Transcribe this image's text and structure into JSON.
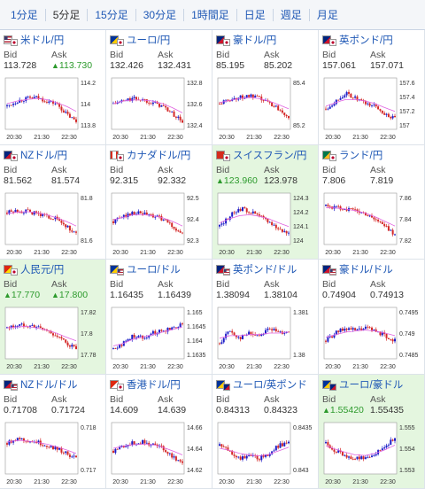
{
  "tabs": [
    {
      "label": "1分足",
      "active": false
    },
    {
      "label": "5分足",
      "active": true
    },
    {
      "label": "15分足",
      "active": false
    },
    {
      "label": "30分足",
      "active": false
    },
    {
      "label": "1時間足",
      "active": false
    },
    {
      "label": "日足",
      "active": false
    },
    {
      "label": "週足",
      "active": false
    },
    {
      "label": "月足",
      "active": false
    }
  ],
  "colors": {
    "up": "#1e1ec8",
    "down": "#d42828",
    "ma": "#e060e0",
    "link": "#1f58b5",
    "highlight": "#e4f6df",
    "bid_up": "#2c9a2c"
  },
  "panels": [
    {
      "pair": "米ドル/円",
      "flags": [
        "us-flag",
        "jp-flag"
      ],
      "bid_label": "Bid",
      "ask_label": "Ask",
      "bid": "113.728",
      "ask": "113.730",
      "bid_up": false,
      "ask_up": true,
      "highlight": false,
      "chart_data": {
        "type": "candlestick",
        "x_ticks": [
          "20:30",
          "21:30",
          "22:30"
        ],
        "y_ticks": [
          "114.2",
          "114",
          "113.8"
        ],
        "trend": [
          0.45,
          0.55,
          0.6,
          0.62,
          0.55,
          0.5,
          0.3,
          0.15
        ],
        "ma": [
          0.5,
          0.55,
          0.58,
          0.6,
          0.58,
          0.52,
          0.45,
          0.35
        ]
      }
    },
    {
      "pair": "ユーロ/円",
      "flags": [
        "eu-flag",
        "jp-flag"
      ],
      "bid_label": "Bid",
      "ask_label": "Ask",
      "bid": "132.426",
      "ask": "132.431",
      "bid_up": false,
      "ask_up": false,
      "highlight": false,
      "chart_data": {
        "type": "candlestick",
        "x_ticks": [
          "20:30",
          "21:30",
          "22:30"
        ],
        "y_ticks": [
          "132.8",
          "132.6",
          "132.4"
        ],
        "trend": [
          0.5,
          0.55,
          0.6,
          0.58,
          0.52,
          0.45,
          0.3,
          0.15
        ],
        "ma": [
          0.5,
          0.55,
          0.57,
          0.57,
          0.55,
          0.5,
          0.42,
          0.32
        ]
      }
    },
    {
      "pair": "豪ドル/円",
      "flags": [
        "au-flag",
        "jp-flag"
      ],
      "bid_label": "Bid",
      "ask_label": "Ask",
      "bid": "85.195",
      "ask": "85.202",
      "bid_up": false,
      "ask_up": false,
      "highlight": false,
      "chart_data": {
        "type": "candlestick",
        "x_ticks": [
          "20:30",
          "21:30",
          "22:30"
        ],
        "y_ticks": [
          "85.4",
          "85.2"
        ],
        "trend": [
          0.5,
          0.58,
          0.62,
          0.65,
          0.6,
          0.52,
          0.4,
          0.25
        ],
        "ma": [
          0.52,
          0.56,
          0.6,
          0.62,
          0.6,
          0.55,
          0.48,
          0.4
        ]
      }
    },
    {
      "pair": "英ポンド/円",
      "flags": [
        "gb-flag",
        "jp-flag"
      ],
      "bid_label": "Bid",
      "ask_label": "Ask",
      "bid": "157.061",
      "ask": "157.071",
      "bid_up": false,
      "ask_up": false,
      "highlight": false,
      "chart_data": {
        "type": "candlestick",
        "x_ticks": [
          "20:30",
          "21:30",
          "22:30"
        ],
        "y_ticks": [
          "157.6",
          "157.4",
          "157.2",
          "157"
        ],
        "trend": [
          0.4,
          0.55,
          0.7,
          0.6,
          0.5,
          0.45,
          0.3,
          0.2
        ],
        "ma": [
          0.45,
          0.52,
          0.58,
          0.58,
          0.55,
          0.5,
          0.42,
          0.35
        ]
      }
    },
    {
      "pair": "NZドル/円",
      "flags": [
        "nz-flag",
        "jp-flag"
      ],
      "bid_label": "Bid",
      "ask_label": "Ask",
      "bid": "81.562",
      "ask": "81.574",
      "bid_up": false,
      "ask_up": false,
      "highlight": false,
      "chart_data": {
        "type": "candlestick",
        "x_ticks": [
          "20:30",
          "21:30",
          "22:30"
        ],
        "y_ticks": [
          "81.8",
          "81.6"
        ],
        "trend": [
          0.62,
          0.66,
          0.64,
          0.6,
          0.55,
          0.5,
          0.35,
          0.2
        ],
        "ma": [
          0.6,
          0.63,
          0.64,
          0.62,
          0.58,
          0.52,
          0.45,
          0.36
        ]
      }
    },
    {
      "pair": "カナダドル/円",
      "flags": [
        "ca-flag",
        "jp-flag"
      ],
      "bid_label": "Bid",
      "ask_label": "Ask",
      "bid": "92.315",
      "ask": "92.332",
      "bid_up": false,
      "ask_up": false,
      "highlight": false,
      "chart_data": {
        "type": "candlestick",
        "x_ticks": [
          "20:30",
          "21:30",
          "22:30"
        ],
        "y_ticks": [
          "92.5",
          "92.4",
          "92.3"
        ],
        "trend": [
          0.45,
          0.55,
          0.62,
          0.6,
          0.55,
          0.5,
          0.35,
          0.2
        ],
        "ma": [
          0.48,
          0.53,
          0.58,
          0.58,
          0.56,
          0.52,
          0.45,
          0.36
        ]
      }
    },
    {
      "pair": "スイスフラン/円",
      "flags": [
        "ch-flag",
        "jp-flag"
      ],
      "bid_label": "Bid",
      "ask_label": "Ask",
      "bid": "123.960",
      "ask": "123.978",
      "bid_up": true,
      "ask_up": false,
      "highlight": true,
      "chart_data": {
        "type": "candlestick",
        "x_ticks": [
          "20:30",
          "21:30",
          "22:30"
        ],
        "y_ticks": [
          "124.3",
          "124.2",
          "124.1",
          "124"
        ],
        "trend": [
          0.35,
          0.55,
          0.7,
          0.65,
          0.55,
          0.45,
          0.3,
          0.22
        ],
        "ma": [
          0.42,
          0.5,
          0.56,
          0.58,
          0.55,
          0.5,
          0.42,
          0.35
        ]
      }
    },
    {
      "pair": "ランド/円",
      "flags": [
        "za-flag",
        "jp-flag"
      ],
      "bid_label": "Bid",
      "ask_label": "Ask",
      "bid": "7.806",
      "ask": "7.819",
      "bid_up": false,
      "ask_up": false,
      "highlight": false,
      "chart_data": {
        "type": "candlestick",
        "x_ticks": [
          "20:30",
          "21:30",
          "22:30"
        ],
        "y_ticks": [
          "7.86",
          "7.84",
          "7.82"
        ],
        "trend": [
          0.75,
          0.72,
          0.7,
          0.66,
          0.6,
          0.5,
          0.35,
          0.2
        ],
        "ma": [
          0.72,
          0.71,
          0.69,
          0.66,
          0.61,
          0.54,
          0.45,
          0.36
        ]
      }
    },
    {
      "pair": "人民元/円",
      "flags": [
        "cn-flag",
        "jp-flag"
      ],
      "bid_label": "Bid",
      "ask_label": "Ask",
      "bid": "17.770",
      "ask": "17.800",
      "bid_up": true,
      "ask_up": true,
      "highlight": true,
      "chart_data": {
        "type": "candlestick",
        "x_ticks": [
          "20:30",
          "21:30",
          "22:30"
        ],
        "y_ticks": [
          "17.82",
          "17.8",
          "17.78"
        ],
        "trend": [
          0.6,
          0.65,
          0.66,
          0.62,
          0.55,
          0.45,
          0.3,
          0.2
        ],
        "ma": [
          0.6,
          0.62,
          0.63,
          0.6,
          0.56,
          0.5,
          0.42,
          0.35
        ]
      }
    },
    {
      "pair": "ユーロ/ドル",
      "flags": [
        "eu-flag",
        "us-flag"
      ],
      "bid_label": "Bid",
      "ask_label": "Ask",
      "bid": "1.16435",
      "ask": "1.16439",
      "bid_up": false,
      "ask_up": false,
      "highlight": false,
      "chart_data": {
        "type": "candlestick",
        "x_ticks": [
          "20:30",
          "21:30",
          "22:30"
        ],
        "y_ticks": [
          "1.165",
          "1.1645",
          "1.164",
          "1.1635"
        ],
        "trend": [
          0.2,
          0.3,
          0.45,
          0.42,
          0.5,
          0.55,
          0.6,
          0.7
        ],
        "ma": [
          0.25,
          0.3,
          0.38,
          0.42,
          0.47,
          0.52,
          0.57,
          0.62
        ]
      }
    },
    {
      "pair": "英ポンド/ドル",
      "flags": [
        "gb-flag",
        "us-flag"
      ],
      "bid_label": "Bid",
      "ask_label": "Ask",
      "bid": "1.38094",
      "ask": "1.38104",
      "bid_up": false,
      "ask_up": false,
      "highlight": false,
      "chart_data": {
        "type": "candlestick",
        "x_ticks": [
          "20:30",
          "21:30",
          "22:30"
        ],
        "y_ticks": [
          "1.381",
          "1.38"
        ],
        "trend": [
          0.3,
          0.55,
          0.4,
          0.5,
          0.45,
          0.6,
          0.5,
          0.55
        ],
        "ma": [
          0.4,
          0.45,
          0.45,
          0.47,
          0.47,
          0.5,
          0.5,
          0.52
        ]
      }
    },
    {
      "pair": "豪ドル/ドル",
      "flags": [
        "au-flag",
        "us-flag"
      ],
      "bid_label": "Bid",
      "ask_label": "Ask",
      "bid": "0.74904",
      "ask": "0.74913",
      "bid_up": false,
      "ask_up": false,
      "highlight": false,
      "chart_data": {
        "type": "candlestick",
        "x_ticks": [
          "20:30",
          "21:30",
          "22:30"
        ],
        "y_ticks": [
          "0.7495",
          "0.749",
          "0.7485"
        ],
        "trend": [
          0.35,
          0.5,
          0.6,
          0.55,
          0.6,
          0.55,
          0.45,
          0.35
        ],
        "ma": [
          0.42,
          0.47,
          0.52,
          0.54,
          0.56,
          0.54,
          0.5,
          0.45
        ]
      }
    },
    {
      "pair": "NZドル/ドル",
      "flags": [
        "nz-flag",
        "us-flag"
      ],
      "bid_label": "Bid",
      "ask_label": "Ask",
      "bid": "0.71708",
      "ask": "0.71724",
      "bid_up": false,
      "ask_up": false,
      "highlight": false,
      "chart_data": {
        "type": "candlestick",
        "x_ticks": [
          "20:30",
          "21:30",
          "22:30"
        ],
        "y_ticks": [
          "0.718",
          "0.717"
        ],
        "trend": [
          0.6,
          0.7,
          0.65,
          0.62,
          0.55,
          0.5,
          0.4,
          0.3
        ],
        "ma": [
          0.62,
          0.65,
          0.64,
          0.62,
          0.58,
          0.53,
          0.47,
          0.4
        ]
      }
    },
    {
      "pair": "香港ドル/円",
      "flags": [
        "hk-flag",
        "jp-flag"
      ],
      "bid_label": "Bid",
      "ask_label": "Ask",
      "bid": "14.609",
      "ask": "14.639",
      "bid_up": false,
      "ask_up": false,
      "highlight": false,
      "chart_data": {
        "type": "candlestick",
        "x_ticks": [
          "20:30",
          "21:30",
          "22:30"
        ],
        "y_ticks": [
          "14.66",
          "14.64",
          "14.62"
        ],
        "trend": [
          0.45,
          0.55,
          0.6,
          0.62,
          0.58,
          0.5,
          0.35,
          0.2
        ],
        "ma": [
          0.5,
          0.54,
          0.57,
          0.58,
          0.57,
          0.52,
          0.45,
          0.37
        ]
      }
    },
    {
      "pair": "ユーロ/英ポンド",
      "flags": [
        "eu-flag",
        "gb-flag"
      ],
      "bid_label": "Bid",
      "ask_label": "Ask",
      "bid": "0.84313",
      "ask": "0.84323",
      "bid_up": false,
      "ask_up": false,
      "highlight": false,
      "chart_data": {
        "type": "candlestick",
        "x_ticks": [
          "20:30",
          "21:30",
          "22:30"
        ],
        "y_ticks": [
          "0.8435",
          "0.843"
        ],
        "trend": [
          0.55,
          0.45,
          0.3,
          0.35,
          0.3,
          0.4,
          0.55,
          0.62
        ],
        "ma": [
          0.5,
          0.46,
          0.4,
          0.37,
          0.35,
          0.38,
          0.45,
          0.52
        ]
      }
    },
    {
      "pair": "ユーロ/豪ドル",
      "flags": [
        "eu-flag",
        "au-flag"
      ],
      "bid_label": "Bid",
      "ask_label": "Ask",
      "bid": "1.55420",
      "ask": "1.55435",
      "bid_up": true,
      "ask_up": false,
      "highlight": true,
      "chart_data": {
        "type": "candlestick",
        "x_ticks": [
          "20:30",
          "21:30",
          "22:30"
        ],
        "y_ticks": [
          "1.555",
          "1.554",
          "1.553"
        ],
        "trend": [
          0.6,
          0.45,
          0.35,
          0.3,
          0.32,
          0.4,
          0.55,
          0.7
        ],
        "ma": [
          0.55,
          0.48,
          0.42,
          0.37,
          0.36,
          0.4,
          0.47,
          0.56
        ]
      }
    }
  ]
}
